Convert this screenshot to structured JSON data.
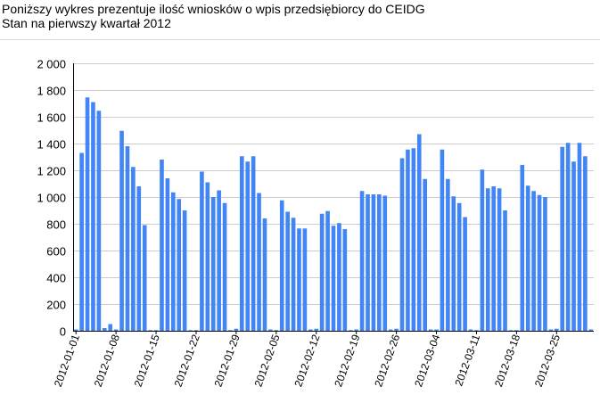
{
  "header": {
    "line1": "Poniższy wykres prezentuje ilość wniosków o wpis przedsiębiorcy do CEIDG",
    "line2": "Stan na pierwszy kwartał 2012"
  },
  "colors": {
    "bar": "#4285f4",
    "grid": "#cccccc",
    "axis": "#000000"
  },
  "chart_data": {
    "type": "bar",
    "title": "Poniższy wykres prezentuje ilość wniosków o wpis przedsiębiorcy do CEIDG",
    "subtitle": "Stan na pierwszy kwartał 2012",
    "xlabel": "",
    "ylabel": "",
    "ylim": [
      0,
      2000
    ],
    "yticks": [
      0,
      200,
      400,
      600,
      800,
      1000,
      1200,
      1400,
      1600,
      1800,
      2000
    ],
    "ytick_labels": [
      "0",
      "200",
      "400",
      "600",
      "800",
      "1 000",
      "1 200",
      "1 400",
      "1 600",
      "1 800",
      "2 000"
    ],
    "grid": true,
    "x_start": "2012-01-01",
    "x_tick_labels": [
      "2012-01-01",
      "2012-01-08",
      "2012-01-15",
      "2012-01-22",
      "2012-01-29",
      "2012-02-05",
      "2012-02-12",
      "2012-02-19",
      "2012-02-26",
      "2012-03-04",
      "2012-03-11",
      "2012-03-18",
      "2012-03-25"
    ],
    "x_tick_every": 7,
    "values": [
      10,
      1330,
      1745,
      1710,
      1645,
      20,
      50,
      10,
      1495,
      1380,
      1225,
      1080,
      790,
      5,
      5,
      1280,
      1140,
      1035,
      985,
      900,
      5,
      5,
      1190,
      1110,
      1000,
      1050,
      955,
      5,
      15,
      1305,
      1265,
      1305,
      1030,
      840,
      10,
      5,
      975,
      890,
      845,
      765,
      765,
      10,
      15,
      875,
      895,
      785,
      805,
      760,
      5,
      10,
      1045,
      1020,
      1020,
      1020,
      1010,
      10,
      15,
      1290,
      1355,
      1365,
      1470,
      1135,
      10,
      10,
      1355,
      1135,
      1005,
      955,
      850,
      10,
      5,
      1205,
      1065,
      1080,
      1065,
      900,
      5,
      5,
      1240,
      1085,
      1045,
      1015,
      1000,
      10,
      15,
      1375,
      1405,
      1265,
      1405,
      1305,
      10
    ]
  }
}
